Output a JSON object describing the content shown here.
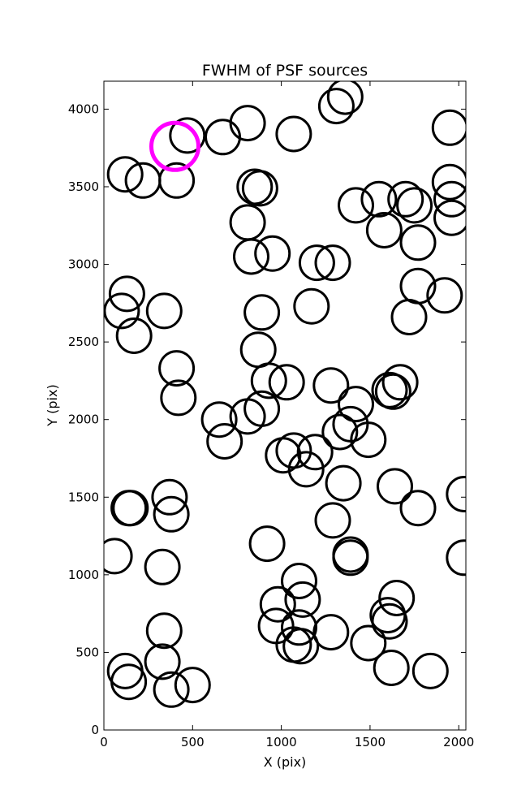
{
  "chart_data": {
    "type": "scatter",
    "title": "FWHM of PSF sources",
    "xlabel": "X (pix)",
    "ylabel": "Y (pix)",
    "xlim": [
      0,
      2040
    ],
    "ylim": [
      0,
      4180
    ],
    "xticks": [
      0,
      500,
      1000,
      1500,
      2000
    ],
    "yticks": [
      0,
      500,
      1000,
      1500,
      2000,
      2500,
      3000,
      3500,
      4000
    ],
    "grid": false,
    "marker": "open-circle",
    "series": [
      {
        "color": "#000000",
        "points": [
          [
            1310,
            4020
          ],
          [
            1360,
            4080
          ],
          [
            810,
            3910
          ],
          [
            670,
            3820
          ],
          [
            470,
            3830
          ],
          [
            1070,
            3840
          ],
          [
            1950,
            3880
          ],
          [
            120,
            3580
          ],
          [
            220,
            3540
          ],
          [
            410,
            3540
          ],
          [
            850,
            3500
          ],
          [
            880,
            3490
          ],
          [
            1420,
            3380
          ],
          [
            1550,
            3420
          ],
          [
            1700,
            3420
          ],
          [
            1750,
            3380
          ],
          [
            1950,
            3530
          ],
          [
            1960,
            3420
          ],
          [
            1960,
            3300
          ],
          [
            810,
            3270
          ],
          [
            1580,
            3220
          ],
          [
            830,
            3050
          ],
          [
            950,
            3070
          ],
          [
            1200,
            3010
          ],
          [
            1290,
            3010
          ],
          [
            1770,
            3140
          ],
          [
            130,
            2810
          ],
          [
            100,
            2700
          ],
          [
            170,
            2540
          ],
          [
            340,
            2700
          ],
          [
            890,
            2690
          ],
          [
            1170,
            2730
          ],
          [
            1770,
            2860
          ],
          [
            1920,
            2800
          ],
          [
            1720,
            2660
          ],
          [
            870,
            2450
          ],
          [
            410,
            2330
          ],
          [
            420,
            2140
          ],
          [
            930,
            2250
          ],
          [
            1030,
            2240
          ],
          [
            1280,
            2220
          ],
          [
            1420,
            2100
          ],
          [
            1610,
            2190
          ],
          [
            1630,
            2180
          ],
          [
            1670,
            2240
          ],
          [
            650,
            2000
          ],
          [
            680,
            1860
          ],
          [
            810,
            2020
          ],
          [
            890,
            2070
          ],
          [
            1010,
            1770
          ],
          [
            1070,
            1800
          ],
          [
            1190,
            1790
          ],
          [
            1140,
            1680
          ],
          [
            1330,
            1920
          ],
          [
            1390,
            1970
          ],
          [
            1490,
            1870
          ],
          [
            1350,
            1590
          ],
          [
            370,
            1500
          ],
          [
            380,
            1390
          ],
          [
            140,
            1430
          ],
          [
            150,
            1430
          ],
          [
            1640,
            1570
          ],
          [
            1770,
            1430
          ],
          [
            2030,
            1520
          ],
          [
            60,
            1120
          ],
          [
            330,
            1050
          ],
          [
            920,
            1200
          ],
          [
            1290,
            1350
          ],
          [
            1390,
            1130
          ],
          [
            1390,
            1110
          ],
          [
            2030,
            1110
          ],
          [
            1100,
            960
          ],
          [
            1120,
            840
          ],
          [
            980,
            810
          ],
          [
            970,
            670
          ],
          [
            1100,
            660
          ],
          [
            1280,
            630
          ],
          [
            1650,
            850
          ],
          [
            1600,
            740
          ],
          [
            1610,
            700
          ],
          [
            340,
            640
          ],
          [
            120,
            380
          ],
          [
            140,
            310
          ],
          [
            330,
            440
          ],
          [
            380,
            260
          ],
          [
            500,
            290
          ],
          [
            1070,
            550
          ],
          [
            1110,
            540
          ],
          [
            1490,
            560
          ],
          [
            1620,
            400
          ],
          [
            1840,
            380
          ]
        ]
      },
      {
        "color": "#ff00ff",
        "points": [
          [
            400,
            3760
          ]
        ]
      }
    ]
  }
}
